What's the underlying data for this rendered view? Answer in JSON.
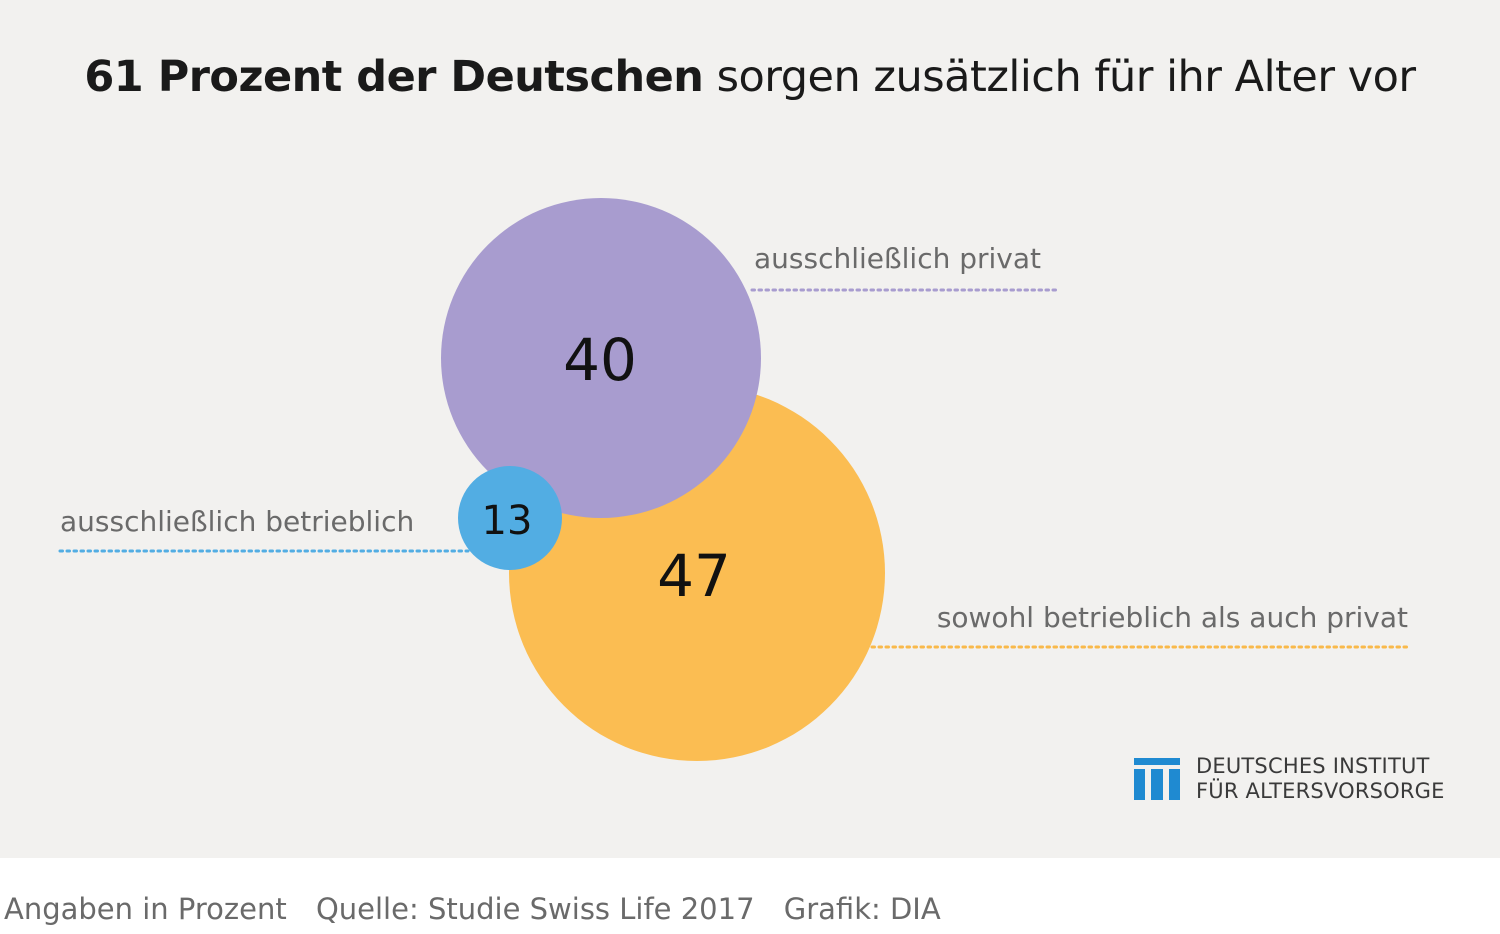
{
  "title": {
    "bold": "61 Prozent der Deutschen",
    "rest": "sorgen zusätzlich für ihr Alter vor"
  },
  "chart_data": {
    "type": "bubble",
    "unit": "Prozent",
    "series": [
      {
        "name": "ausschließlich privat",
        "value": 40,
        "color": "#a89ccf",
        "line_color": "#a89ccf"
      },
      {
        "name": "sowohl betrieblich als auch privat",
        "value": 47,
        "color": "#fbbd52",
        "line_color": "#f9b94a"
      },
      {
        "name": "ausschließlich betrieblich",
        "value": 13,
        "color": "#52ade3",
        "line_color": "#52ade3"
      }
    ]
  },
  "logo": {
    "line1": "DEUTSCHES INSTITUT",
    "line2": "FÜR ALTERSVORSORGE",
    "color": "#1f8ad1"
  },
  "footer": {
    "note": "Angaben in Prozent",
    "source": "Quelle: Studie Swiss Life 2017",
    "credit": "Grafik: DIA"
  }
}
